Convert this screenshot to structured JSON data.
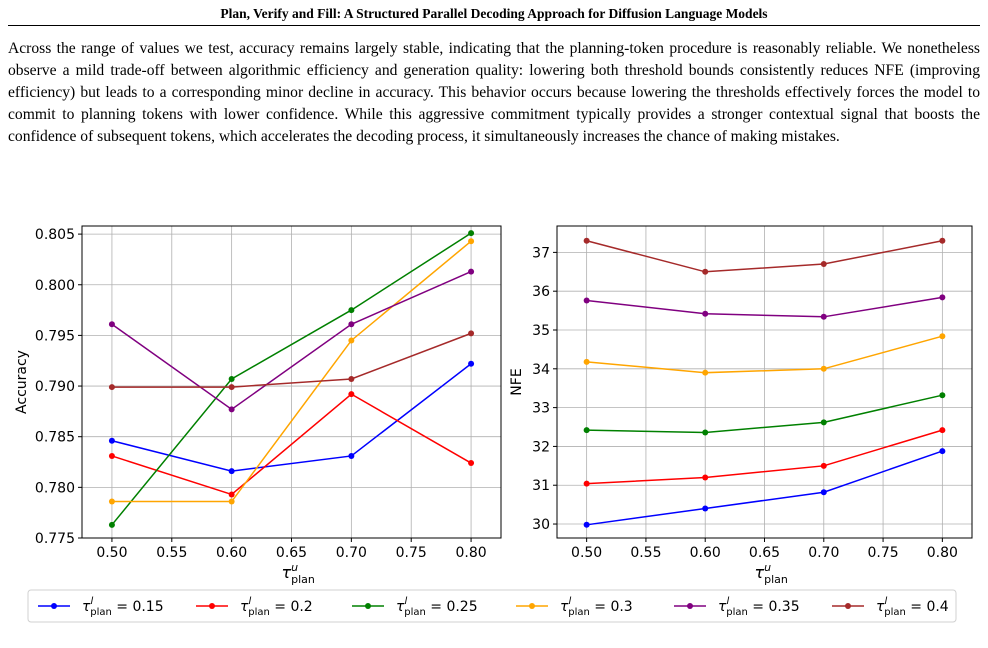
{
  "header": {
    "title": "Plan, Verify and Fill: A Structured Parallel Decoding Approach for Diffusion Language Models"
  },
  "body": {
    "paragraph": "Across the range of values we test, accuracy remains largely stable, indicating that the planning-token procedure is reasonably reliable. We nonetheless observe a mild trade-off between algorithmic efficiency and generation quality: lowering both threshold bounds consistently reduces NFE (improving efficiency) but leads to a corresponding minor decline in accuracy. This behavior occurs because lowering the thresholds effectively forces the model to commit to planning tokens with lower confidence. While this aggressive commitment typically provides a stronger contextual signal that boosts the confidence of subsequent tokens, which accelerates the decoding process, it simultaneously increases the chance of making mistakes."
  },
  "legend": {
    "placement": "bottom-center",
    "symbol_main": "τ",
    "symbol_sup": "l",
    "symbol_sub": "plan",
    "entries": [
      {
        "value_text": " = 0.15",
        "color": "#0000ff"
      },
      {
        "value_text": " = 0.2",
        "color": "#ff0000"
      },
      {
        "value_text": " = 0.25",
        "color": "#008000"
      },
      {
        "value_text": " = 0.3",
        "color": "#ffa500"
      },
      {
        "value_text": " = 0.35",
        "color": "#800080"
      },
      {
        "value_text": " = 0.4",
        "color": "#a52a2a"
      }
    ]
  },
  "chart_data": [
    {
      "type": "line",
      "ylabel": "Accuracy",
      "xlabel_main": "τ",
      "xlabel_sup": "u",
      "xlabel_sub": "plan",
      "x": [
        0.5,
        0.6,
        0.7,
        0.8
      ],
      "xlim": [
        0.475,
        0.825
      ],
      "ylim": [
        0.775,
        0.8058
      ],
      "xticks": [
        0.5,
        0.55,
        0.6,
        0.65,
        0.7,
        0.75,
        0.8
      ],
      "xtick_labels": [
        "0.50",
        "0.55",
        "0.60",
        "0.65",
        "0.70",
        "0.75",
        "0.80"
      ],
      "yticks": [
        0.775,
        0.78,
        0.785,
        0.79,
        0.795,
        0.8,
        0.805
      ],
      "ytick_labels": [
        "0.775",
        "0.780",
        "0.785",
        "0.790",
        "0.795",
        "0.800",
        "0.805"
      ],
      "grid": true,
      "series": [
        {
          "color": "#0000ff",
          "values": [
            0.7846,
            0.7816,
            0.7831,
            0.7922
          ]
        },
        {
          "color": "#ff0000",
          "values": [
            0.7831,
            0.7793,
            0.7892,
            0.7824
          ]
        },
        {
          "color": "#008000",
          "values": [
            0.7763,
            0.7907,
            0.7975,
            0.8051
          ]
        },
        {
          "color": "#ffa500",
          "values": [
            0.7786,
            0.7786,
            0.7945,
            0.8043
          ]
        },
        {
          "color": "#800080",
          "values": [
            0.7961,
            0.7877,
            0.7961,
            0.8013
          ]
        },
        {
          "color": "#a52a2a",
          "values": [
            0.7899,
            0.7899,
            0.7907,
            0.7952
          ]
        }
      ]
    },
    {
      "type": "line",
      "ylabel": "NFE",
      "xlabel_main": "τ",
      "xlabel_sup": "u",
      "xlabel_sub": "plan",
      "x": [
        0.5,
        0.6,
        0.7,
        0.8
      ],
      "xlim": [
        0.475,
        0.825
      ],
      "ylim": [
        29.64,
        37.68
      ],
      "xticks": [
        0.5,
        0.55,
        0.6,
        0.65,
        0.7,
        0.75,
        0.8
      ],
      "xtick_labels": [
        "0.50",
        "0.55",
        "0.60",
        "0.65",
        "0.70",
        "0.75",
        "0.80"
      ],
      "yticks": [
        30,
        31,
        32,
        33,
        34,
        35,
        36,
        37
      ],
      "ytick_labels": [
        "30",
        "31",
        "32",
        "33",
        "34",
        "35",
        "36",
        "37"
      ],
      "grid": true,
      "series": [
        {
          "color": "#0000ff",
          "values": [
            29.98,
            30.4,
            30.82,
            31.88
          ]
        },
        {
          "color": "#ff0000",
          "values": [
            31.04,
            31.2,
            31.5,
            32.42
          ]
        },
        {
          "color": "#008000",
          "values": [
            32.42,
            32.36,
            32.62,
            33.32
          ]
        },
        {
          "color": "#ffa500",
          "values": [
            34.18,
            33.9,
            34.0,
            34.84
          ]
        },
        {
          "color": "#800080",
          "values": [
            35.76,
            35.42,
            35.34,
            35.84
          ]
        },
        {
          "color": "#a52a2a",
          "values": [
            37.3,
            36.5,
            36.7,
            37.3
          ]
        }
      ]
    }
  ]
}
